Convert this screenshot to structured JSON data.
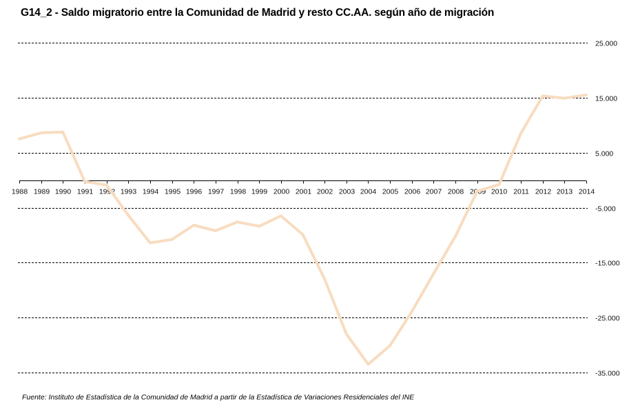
{
  "chart_data": {
    "type": "line",
    "title": "G14_2 - Saldo migratorio entre la Comunidad de Madrid y resto CC.AA. según año de migración",
    "source": "Fuente: Instituto de Estadística de la Comunidad de Madrid a partir de la Estadística de Variaciones Residenciales del INE",
    "xlabel": "",
    "ylabel": "",
    "ylim": [
      -35000,
      25000
    ],
    "yticks": [
      25000,
      15000,
      5000,
      -5000,
      -15000,
      -25000,
      -35000
    ],
    "ytick_labels": [
      "25.000",
      "15.000",
      "5.000",
      "-5.000",
      "-15.000",
      "-25.000",
      "-35.000"
    ],
    "grid": true,
    "legend": "none",
    "line_color": "#f8dcc0",
    "x": [
      "1988",
      "1989",
      "1990",
      "1991",
      "1992",
      "1993",
      "1994",
      "1995",
      "1996",
      "1997",
      "1998",
      "1999",
      "2000",
      "2001",
      "2002",
      "2003",
      "2004",
      "2005",
      "2006",
      "2007",
      "2008",
      "2009",
      "2010",
      "2011",
      "2012",
      "2013",
      "2014"
    ],
    "series": [
      {
        "name": "Saldo migratorio",
        "values": [
          7500,
          8600,
          8750,
          -250,
          -900,
          -6400,
          -11400,
          -10800,
          -8200,
          -9200,
          -7600,
          -8400,
          -6500,
          -9900,
          -18000,
          -28000,
          -33500,
          -30100,
          -23900,
          -17000,
          -10200,
          -2000,
          -800,
          8500,
          15300,
          14900,
          15500
        ]
      }
    ]
  }
}
